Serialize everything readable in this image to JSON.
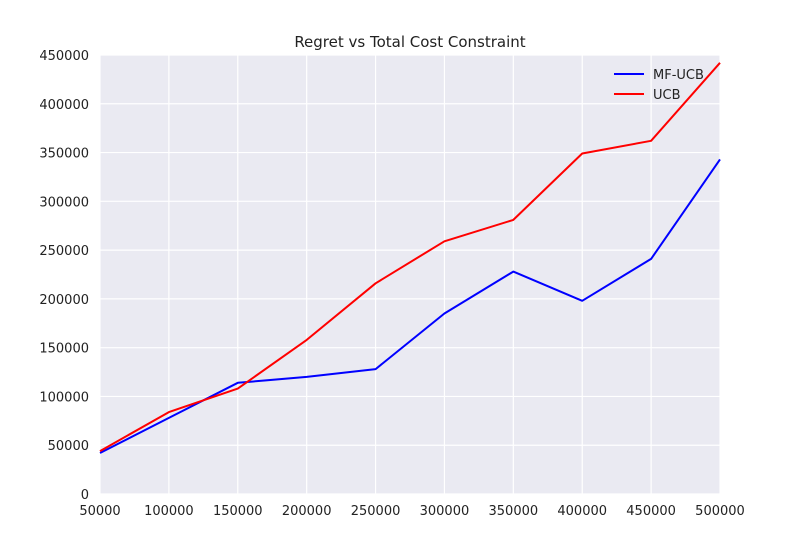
{
  "chart_data": {
    "type": "line",
    "title": "Regret vs Total Cost Constraint",
    "xlabel": "",
    "ylabel": "",
    "x": [
      50000,
      100000,
      150000,
      200000,
      250000,
      300000,
      350000,
      400000,
      450000,
      500000
    ],
    "xlim": [
      50000,
      500000
    ],
    "ylim": [
      0,
      450000
    ],
    "x_ticks": [
      "50000",
      "100000",
      "150000",
      "200000",
      "250000",
      "300000",
      "350000",
      "400000",
      "450000",
      "500000"
    ],
    "y_ticks": [
      "0",
      "50000",
      "100000",
      "150000",
      "200000",
      "250000",
      "300000",
      "350000",
      "400000",
      "450000"
    ],
    "grid": true,
    "legend_position": "top-right",
    "series": [
      {
        "name": "MF-UCB",
        "color": "#0000ff",
        "values": [
          42000,
          78000,
          114000,
          120000,
          128000,
          185000,
          228000,
          198000,
          241000,
          343000
        ]
      },
      {
        "name": "UCB",
        "color": "#ff0000",
        "values": [
          44000,
          84000,
          108000,
          158000,
          216000,
          259000,
          281000,
          349000,
          362000,
          442000
        ]
      }
    ],
    "background_color": "#eaeaf2",
    "grid_color": "#ffffff"
  }
}
